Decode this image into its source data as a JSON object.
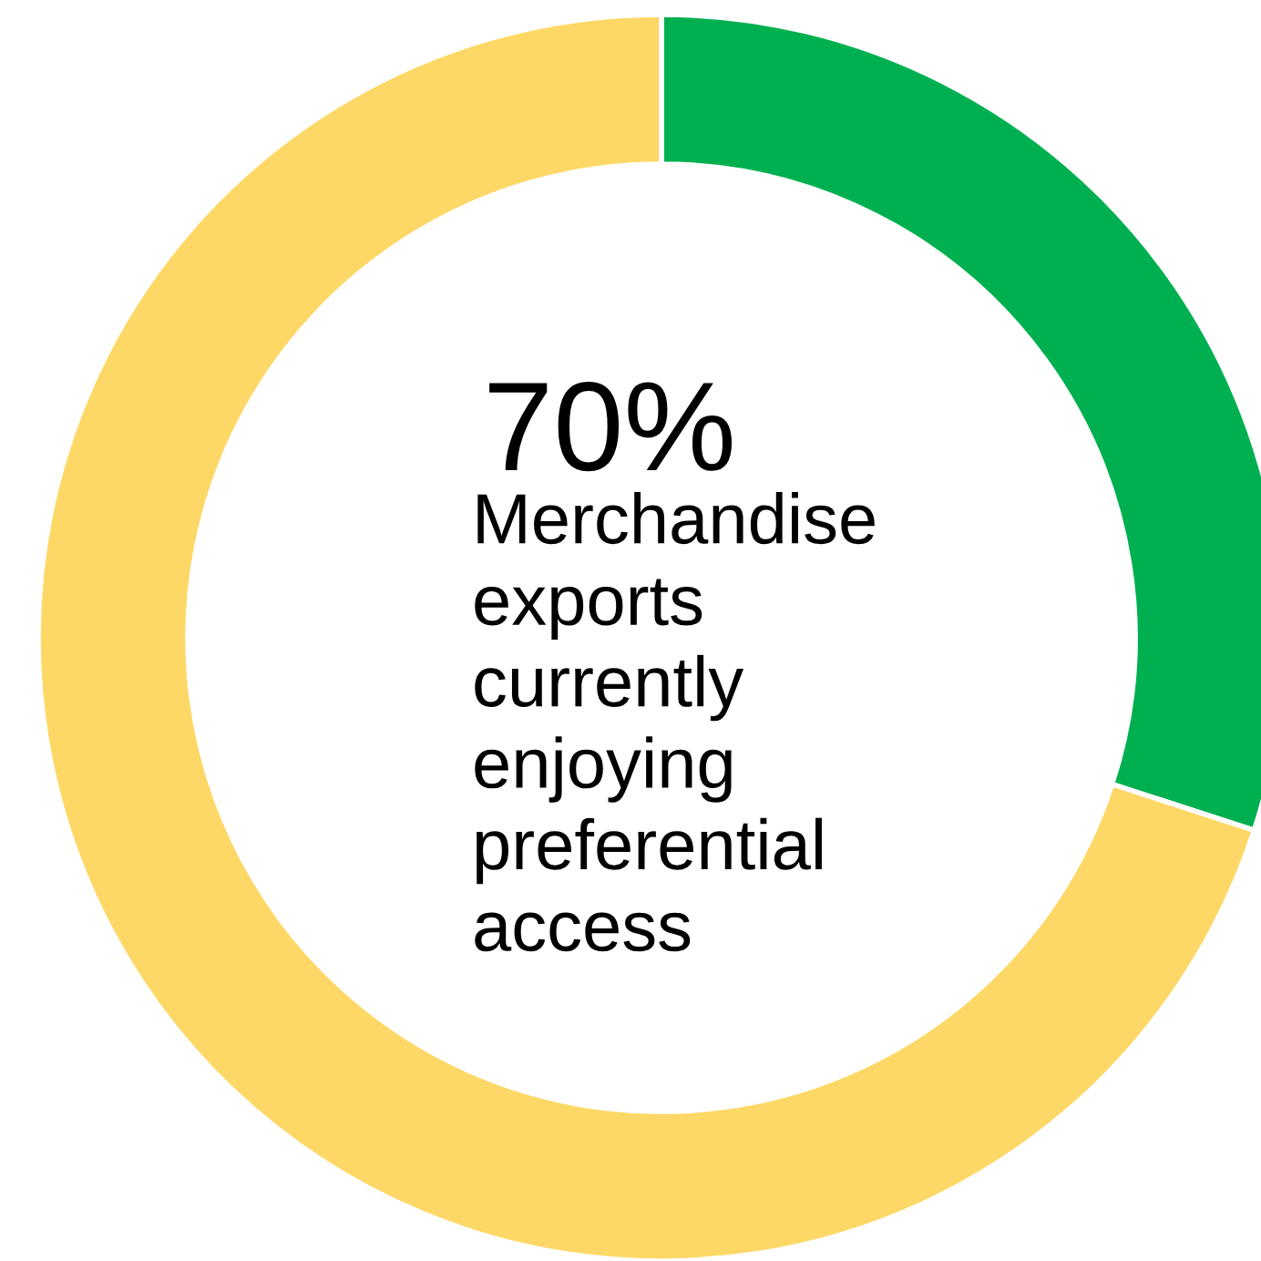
{
  "chart_data": {
    "type": "donut",
    "categories": [
      null,
      null
    ],
    "values": [
      30,
      70
    ],
    "colors": [
      "#00b050",
      "#fdd866"
    ],
    "annotations": [
      "70%",
      "Merchandise\nexports\ncurrently\nenjoying\npreferential\naccess"
    ],
    "legend": false
  }
}
